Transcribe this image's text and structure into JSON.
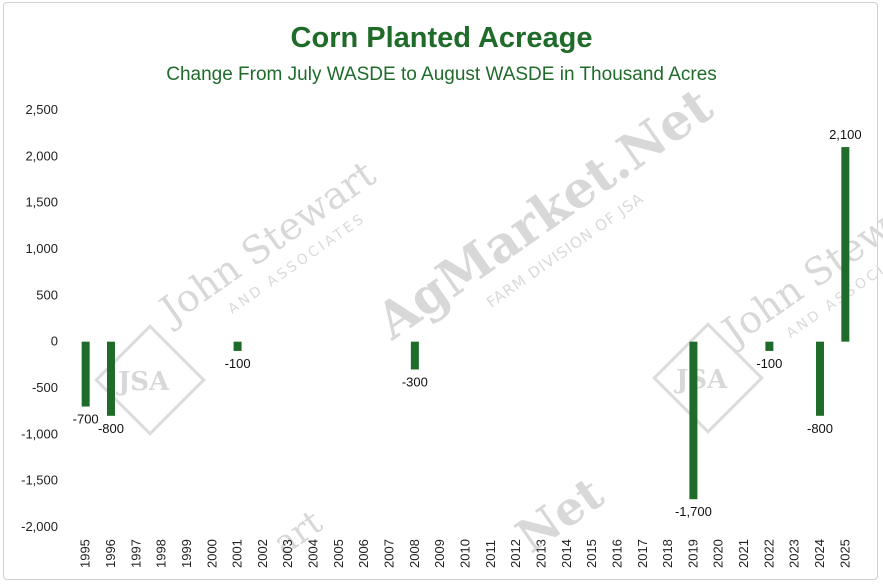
{
  "chart_data": {
    "type": "bar",
    "title": "Corn Planted Acreage",
    "subtitle": "Change From July WASDE to August WASDE in Thousand Acres",
    "xlabel": "",
    "ylabel": "",
    "ylim": [
      -2000,
      2500
    ],
    "yticks": [
      2500,
      2000,
      1500,
      1000,
      500,
      0,
      -500,
      -1000,
      -1500,
      -2000
    ],
    "ytick_labels": [
      "2,500",
      "2,000",
      "1,500",
      "1,000",
      "500",
      "0",
      "-500",
      "-1,000",
      "-1,500",
      "-2,000"
    ],
    "grid": false,
    "bar_color": "#1f6b2a",
    "categories": [
      "1995",
      "1996",
      "1997",
      "1998",
      "1999",
      "2000",
      "2001",
      "2002",
      "2003",
      "2004",
      "2005",
      "2006",
      "2007",
      "2008",
      "2009",
      "2010",
      "2011",
      "2012",
      "2013",
      "2014",
      "2015",
      "2016",
      "2017",
      "2018",
      "2019",
      "2020",
      "2021",
      "2022",
      "2023",
      "2024",
      "2025"
    ],
    "values": [
      -700,
      -800,
      0,
      0,
      0,
      0,
      -100,
      0,
      0,
      0,
      0,
      0,
      0,
      -300,
      0,
      0,
      0,
      0,
      0,
      0,
      0,
      0,
      0,
      0,
      -1700,
      0,
      0,
      -100,
      0,
      -800,
      2100
    ],
    "data_labels": [
      {
        "year": "1995",
        "text": "-700"
      },
      {
        "year": "1996",
        "text": "-800"
      },
      {
        "year": "2001",
        "text": "-100"
      },
      {
        "year": "2008",
        "text": "-300"
      },
      {
        "year": "2019",
        "text": "-1,700"
      },
      {
        "year": "2022",
        "text": "-100"
      },
      {
        "year": "2024",
        "text": "-800"
      },
      {
        "year": "2025",
        "text": "2,100"
      }
    ]
  },
  "watermarks": {
    "jsa_name": "John Stewart",
    "jsa_sub": "AND ASSOCIATES",
    "jsa_monogram": "JSA",
    "agmarket": "AgMarket.Net",
    "agmarket_sub": "FARM DIVISION OF JSA"
  }
}
